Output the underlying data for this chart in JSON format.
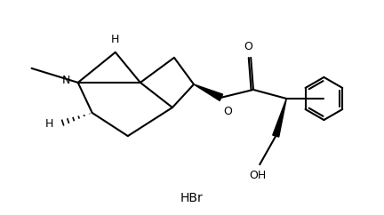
{
  "bg_color": "#ffffff",
  "line_color": "#000000",
  "lw": 1.5,
  "fs": 9,
  "xlim": [
    0,
    10
  ],
  "ylim": [
    0,
    6
  ]
}
